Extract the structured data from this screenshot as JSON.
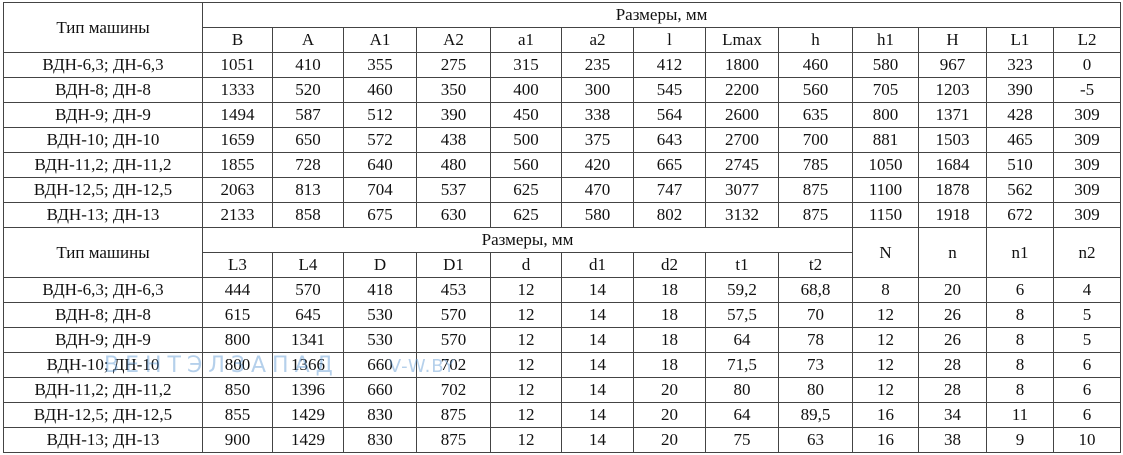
{
  "table1": {
    "row_header": "Тип машины",
    "group_header": "Размеры, мм",
    "columns": [
      "B",
      "A",
      "A1",
      "A2",
      "a1",
      "a2",
      "l",
      "Lmax",
      "h",
      "h1",
      "H",
      "L1",
      "L2"
    ],
    "rows": [
      [
        "ВДН-6,3; ДН-6,3",
        "1051",
        "410",
        "355",
        "275",
        "315",
        "235",
        "412",
        "1800",
        "460",
        "580",
        "967",
        "323",
        "0"
      ],
      [
        "ВДН-8; ДН-8",
        "1333",
        "520",
        "460",
        "350",
        "400",
        "300",
        "545",
        "2200",
        "560",
        "705",
        "1203",
        "390",
        "-5"
      ],
      [
        "ВДН-9; ДН-9",
        "1494",
        "587",
        "512",
        "390",
        "450",
        "338",
        "564",
        "2600",
        "635",
        "800",
        "1371",
        "428",
        "309"
      ],
      [
        "ВДН-10; ДН-10",
        "1659",
        "650",
        "572",
        "438",
        "500",
        "375",
        "643",
        "2700",
        "700",
        "881",
        "1503",
        "465",
        "309"
      ],
      [
        "ВДН-11,2; ДН-11,2",
        "1855",
        "728",
        "640",
        "480",
        "560",
        "420",
        "665",
        "2745",
        "785",
        "1050",
        "1684",
        "510",
        "309"
      ],
      [
        "ВДН-12,5; ДН-12,5",
        "2063",
        "813",
        "704",
        "537",
        "625",
        "470",
        "747",
        "3077",
        "875",
        "1100",
        "1878",
        "562",
        "309"
      ],
      [
        "ВДН-13; ДН-13",
        "2133",
        "858",
        "675",
        "630",
        "625",
        "580",
        "802",
        "3132",
        "875",
        "1150",
        "1918",
        "672",
        "309"
      ]
    ]
  },
  "table2": {
    "row_header": "Тип машины",
    "group_header": "Размеры, мм",
    "columns": [
      "L3",
      "L4",
      "D",
      "D1",
      "d",
      "d1",
      "d2",
      "t1",
      "t2"
    ],
    "extra_columns": [
      "N",
      "n",
      "n1",
      "n2"
    ],
    "rows": [
      [
        "ВДН-6,3; ДН-6,3",
        "444",
        "570",
        "418",
        "453",
        "12",
        "14",
        "18",
        "59,2",
        "68,8",
        "8",
        "20",
        "6",
        "4"
      ],
      [
        "ВДН-8; ДН-8",
        "615",
        "645",
        "530",
        "570",
        "12",
        "14",
        "18",
        "57,5",
        "70",
        "12",
        "26",
        "8",
        "5"
      ],
      [
        "ВДН-9; ДН-9",
        "800",
        "1341",
        "530",
        "570",
        "12",
        "14",
        "18",
        "64",
        "78",
        "12",
        "26",
        "8",
        "5"
      ],
      [
        "ВДН-10; ДН-10",
        "800",
        "1366",
        "660",
        "702",
        "12",
        "14",
        "18",
        "71,5",
        "73",
        "12",
        "28",
        "8",
        "6"
      ],
      [
        "ВДН-11,2; ДН-11,2",
        "850",
        "1396",
        "660",
        "702",
        "12",
        "14",
        "20",
        "80",
        "80",
        "12",
        "28",
        "8",
        "6"
      ],
      [
        "ВДН-12,5; ДН-12,5",
        "855",
        "1429",
        "830",
        "875",
        "12",
        "14",
        "20",
        "64",
        "89,5",
        "16",
        "34",
        "11",
        "6"
      ],
      [
        "ВДН-13; ДН-13",
        "900",
        "1429",
        "830",
        "875",
        "12",
        "14",
        "20",
        "75",
        "63",
        "16",
        "38",
        "9",
        "10"
      ]
    ]
  },
  "watermark": {
    "brand": "ВЕНТЭЛЗАПАД",
    "site": "V-W.BY"
  }
}
